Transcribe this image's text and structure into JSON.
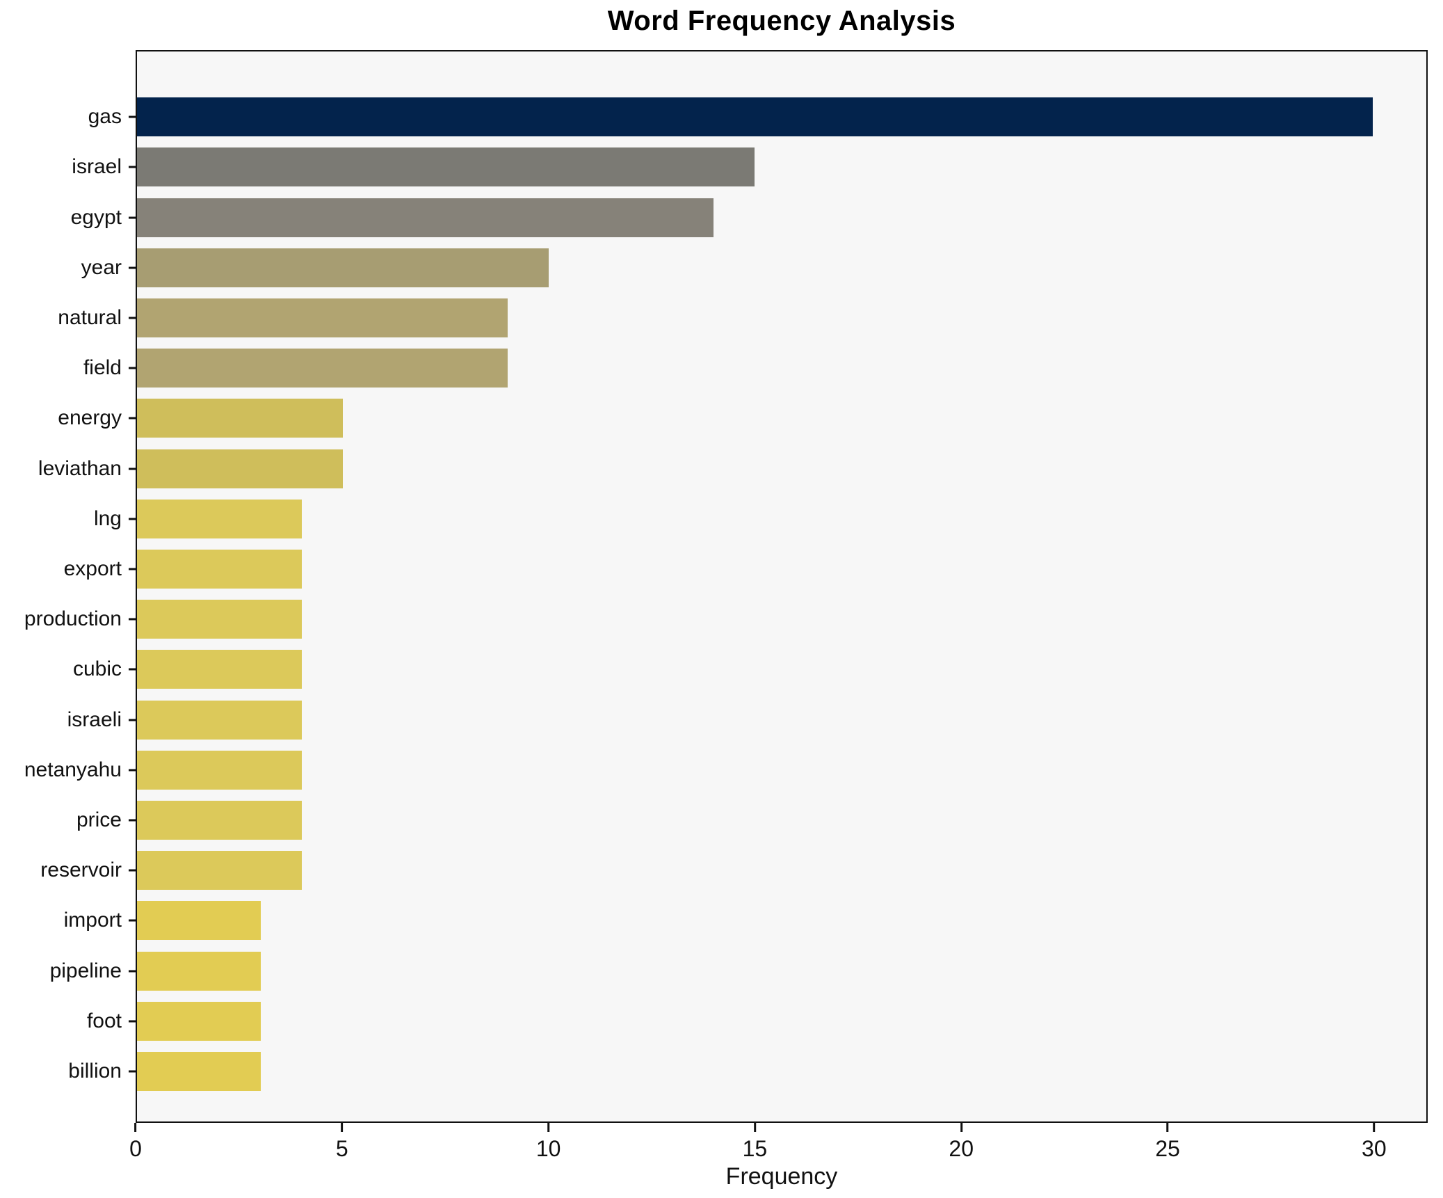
{
  "figure": {
    "background": "#ffffff",
    "plot_background": "#f7f7f7",
    "frame_color": "#111111",
    "text_color": "#111111"
  },
  "chart_data": {
    "type": "bar",
    "orientation": "horizontal",
    "title": "Word Frequency Analysis",
    "xlabel": "Frequency",
    "ylabel": "",
    "categories": [
      "gas",
      "israel",
      "egypt",
      "year",
      "natural",
      "field",
      "energy",
      "leviathan",
      "lng",
      "export",
      "production",
      "cubic",
      "israeli",
      "netanyahu",
      "price",
      "reservoir",
      "import",
      "pipeline",
      "foot",
      "billion"
    ],
    "values": [
      30,
      15,
      14,
      10,
      9,
      9,
      5,
      5,
      4,
      4,
      4,
      4,
      4,
      4,
      4,
      4,
      3,
      3,
      3,
      3
    ],
    "bar_colors": [
      "#03234c",
      "#7b7a74",
      "#868279",
      "#a79d72",
      "#b1a471",
      "#b1a471",
      "#cfbe5b",
      "#cfbe5b",
      "#dcc95a",
      "#dcc95a",
      "#dcc95a",
      "#dcc95a",
      "#dcc95a",
      "#dcc95a",
      "#dcc95a",
      "#dcc95a",
      "#e2cc53",
      "#e2cc53",
      "#e2cc53",
      "#e2cc53"
    ],
    "xticks": [
      0,
      5,
      10,
      15,
      20,
      25,
      30
    ],
    "xlim": [
      0,
      31.3
    ],
    "grid": false,
    "legend": null
  }
}
